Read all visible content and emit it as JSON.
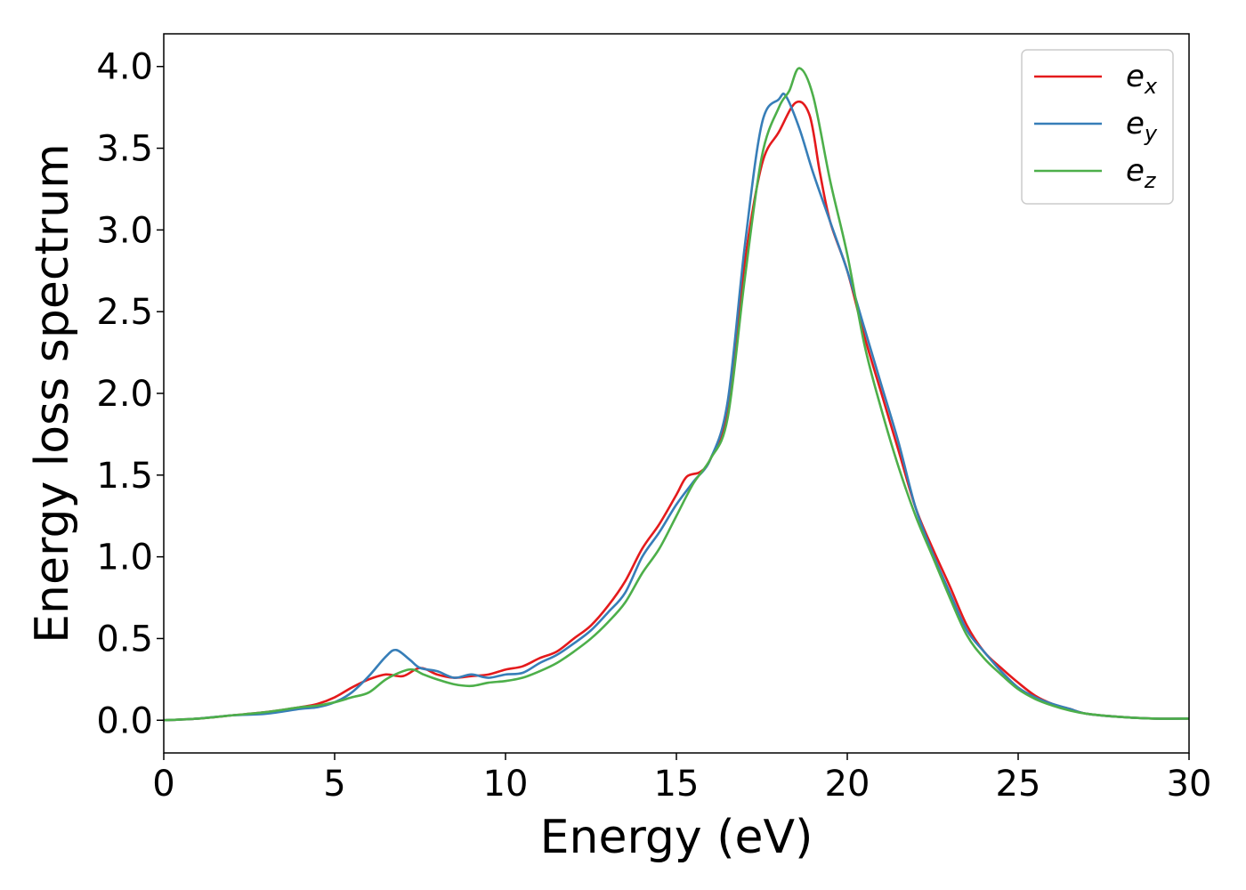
{
  "chart_data": {
    "type": "line",
    "title": "",
    "xlabel": "Energy (eV)",
    "ylabel": "Energy loss spectrum",
    "xlim": [
      0,
      30
    ],
    "ylim": [
      -0.2,
      4.2
    ],
    "xticks": [
      0,
      5,
      10,
      15,
      20,
      25,
      30
    ],
    "xtick_labels": [
      "0",
      "5",
      "10",
      "15",
      "20",
      "25",
      "30"
    ],
    "yticks": [
      0.0,
      0.5,
      1.0,
      1.5,
      2.0,
      2.5,
      3.0,
      3.5,
      4.0
    ],
    "ytick_labels": [
      "0.0",
      "0.5",
      "1.0",
      "1.5",
      "2.0",
      "2.5",
      "3.0",
      "3.5",
      "4.0"
    ],
    "grid": false,
    "legend_position": "top-right",
    "series": [
      {
        "name": "e_x",
        "label_main": "e",
        "label_sub": "x",
        "color": "#e41a1c",
        "x": [
          0,
          1,
          2,
          3,
          4,
          4.5,
          5,
          5.5,
          6,
          6.5,
          7,
          7.5,
          8,
          8.5,
          9,
          9.5,
          10,
          10.5,
          11,
          11.5,
          12,
          12.5,
          13,
          13.5,
          14,
          14.5,
          15,
          15.3,
          15.7,
          16,
          16.5,
          17,
          17.5,
          18,
          18.5,
          18.9,
          19.2,
          19.5,
          20,
          20.5,
          21,
          21.5,
          22,
          22.5,
          23,
          23.5,
          24,
          24.5,
          25,
          25.5,
          26,
          26.5,
          27,
          28,
          29,
          30
        ],
        "y": [
          0.0,
          0.01,
          0.03,
          0.05,
          0.08,
          0.1,
          0.14,
          0.2,
          0.25,
          0.28,
          0.27,
          0.32,
          0.28,
          0.26,
          0.27,
          0.28,
          0.31,
          0.33,
          0.38,
          0.42,
          0.5,
          0.58,
          0.7,
          0.85,
          1.05,
          1.2,
          1.38,
          1.49,
          1.52,
          1.6,
          1.9,
          2.8,
          3.4,
          3.6,
          3.78,
          3.7,
          3.35,
          3.05,
          2.75,
          2.35,
          2.0,
          1.65,
          1.3,
          1.05,
          0.82,
          0.58,
          0.42,
          0.32,
          0.23,
          0.15,
          0.1,
          0.07,
          0.04,
          0.02,
          0.01,
          0.01
        ]
      },
      {
        "name": "e_y",
        "label_main": "e",
        "label_sub": "y",
        "color": "#377eb8",
        "x": [
          0,
          1,
          2,
          3,
          4,
          4.5,
          5,
          5.5,
          6,
          6.5,
          6.8,
          7.2,
          7.5,
          8,
          8.5,
          9,
          9.5,
          10,
          10.5,
          11,
          11.5,
          12,
          12.5,
          13,
          13.5,
          14,
          14.5,
          15,
          15.5,
          16,
          16.5,
          17,
          17.5,
          18,
          18.2,
          18.6,
          19,
          19.5,
          20,
          20.5,
          21,
          21.5,
          22,
          22.5,
          23,
          23.5,
          24,
          24.5,
          25,
          25.5,
          26,
          26.5,
          27,
          28,
          29,
          30
        ],
        "y": [
          0.0,
          0.01,
          0.03,
          0.04,
          0.07,
          0.08,
          0.11,
          0.17,
          0.27,
          0.39,
          0.43,
          0.37,
          0.32,
          0.3,
          0.26,
          0.28,
          0.26,
          0.28,
          0.29,
          0.35,
          0.4,
          0.47,
          0.55,
          0.66,
          0.78,
          1.0,
          1.15,
          1.32,
          1.46,
          1.6,
          1.95,
          2.9,
          3.65,
          3.8,
          3.82,
          3.62,
          3.35,
          3.05,
          2.75,
          2.4,
          2.05,
          1.7,
          1.3,
          1.02,
          0.78,
          0.55,
          0.42,
          0.3,
          0.2,
          0.14,
          0.1,
          0.07,
          0.04,
          0.02,
          0.01,
          0.01
        ]
      },
      {
        "name": "e_z",
        "label_main": "e",
        "label_sub": "z",
        "color": "#4daf4a",
        "x": [
          0,
          1,
          2,
          3,
          4,
          4.5,
          5,
          5.5,
          6,
          6.5,
          7,
          7.3,
          7.6,
          8,
          8.5,
          9,
          9.5,
          10,
          10.5,
          11,
          11.5,
          12,
          12.5,
          13,
          13.5,
          14,
          14.5,
          15,
          15.5,
          16,
          16.5,
          17,
          17.5,
          18,
          18.3,
          18.6,
          19,
          19.5,
          20,
          20.5,
          21,
          21.5,
          22,
          22.5,
          23,
          23.5,
          24,
          24.5,
          25,
          25.5,
          26,
          26.5,
          27,
          28,
          29,
          30
        ],
        "y": [
          0.0,
          0.01,
          0.03,
          0.05,
          0.08,
          0.09,
          0.11,
          0.14,
          0.17,
          0.25,
          0.3,
          0.31,
          0.28,
          0.25,
          0.22,
          0.21,
          0.23,
          0.24,
          0.26,
          0.3,
          0.35,
          0.42,
          0.5,
          0.6,
          0.72,
          0.9,
          1.05,
          1.25,
          1.45,
          1.6,
          1.85,
          2.7,
          3.45,
          3.75,
          3.85,
          3.99,
          3.82,
          3.3,
          2.85,
          2.3,
          1.9,
          1.55,
          1.25,
          1.0,
          0.75,
          0.52,
          0.38,
          0.28,
          0.19,
          0.13,
          0.09,
          0.06,
          0.04,
          0.02,
          0.01,
          0.01
        ]
      }
    ]
  }
}
